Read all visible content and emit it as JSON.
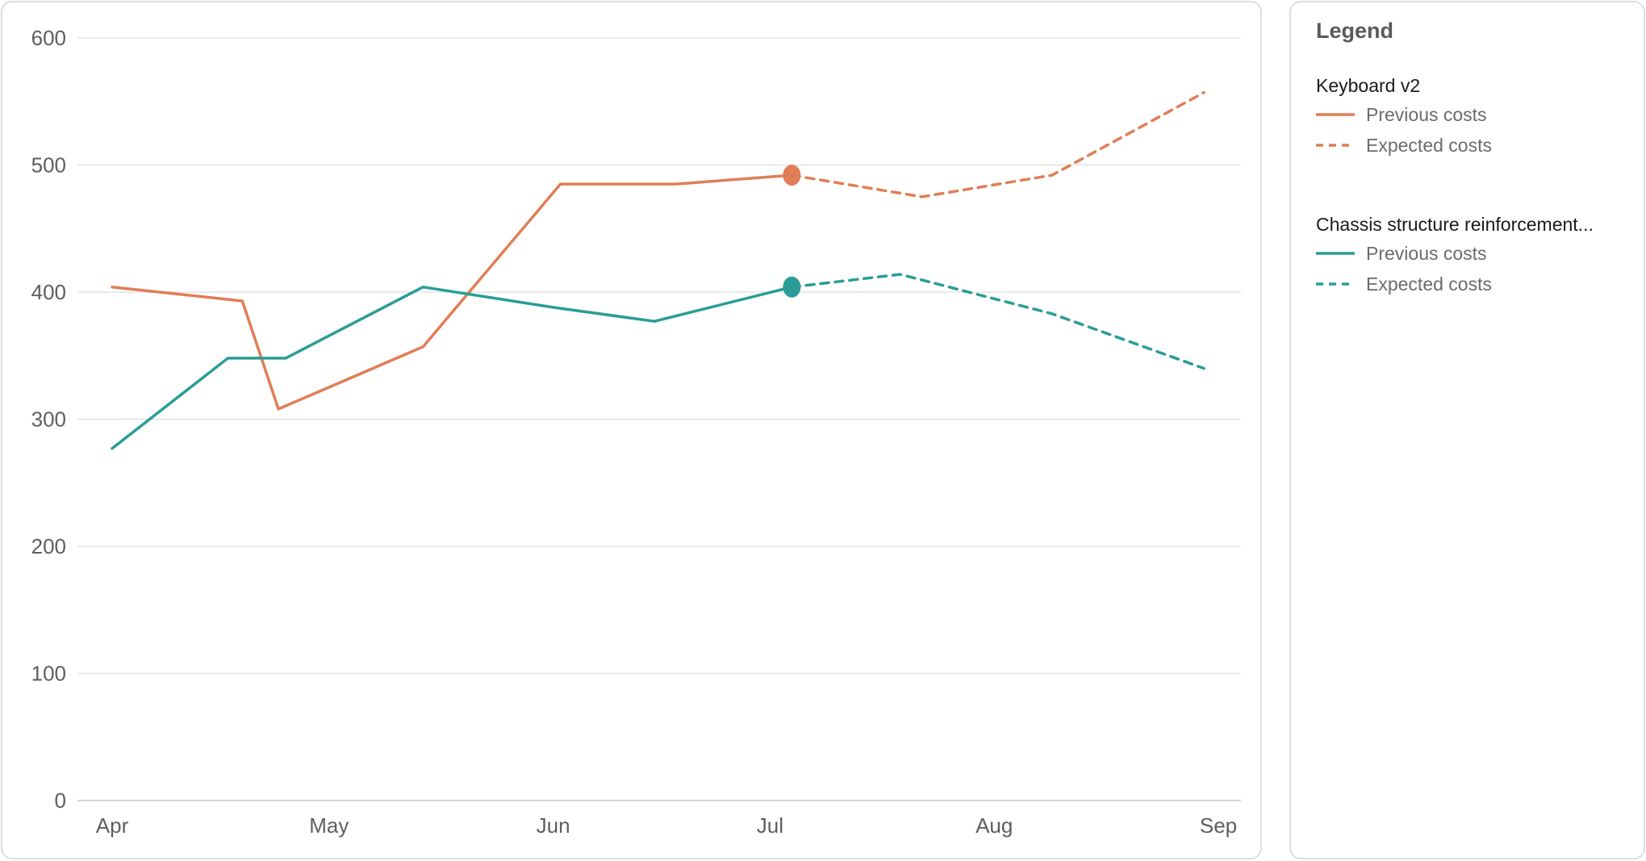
{
  "chart_data": {
    "type": "line",
    "y_axis": {
      "ylim": [
        0,
        600
      ],
      "ticks": [
        0,
        100,
        200,
        300,
        400,
        500,
        600
      ]
    },
    "x_axis": {
      "type": "date",
      "range": [
        "2024-04-01",
        "2024-09-01"
      ],
      "tick_labels": [
        {
          "date": "2024-04-01",
          "label": "Apr"
        },
        {
          "date": "2024-05-01",
          "label": "May"
        },
        {
          "date": "2024-06-01",
          "label": "Jun"
        },
        {
          "date": "2024-07-01",
          "label": "Jul"
        },
        {
          "date": "2024-08-01",
          "label": "Aug"
        },
        {
          "date": "2024-09-01",
          "label": "Sep"
        }
      ]
    },
    "grid": true,
    "legend_position": "right",
    "groups": [
      {
        "name": "Keyboard v2",
        "color": "#e07e57",
        "current_point": {
          "x": "2024-07-04",
          "y": 492
        },
        "series": [
          {
            "name": "Previous costs",
            "style": "solid",
            "points": [
              {
                "x": "2024-04-01",
                "y": 404
              },
              {
                "x": "2024-04-19",
                "y": 393
              },
              {
                "x": "2024-04-24",
                "y": 308
              },
              {
                "x": "2024-05-14",
                "y": 357
              },
              {
                "x": "2024-06-02",
                "y": 485
              },
              {
                "x": "2024-06-18",
                "y": 485
              },
              {
                "x": "2024-07-04",
                "y": 492
              }
            ]
          },
          {
            "name": "Expected costs",
            "style": "dashed",
            "points": [
              {
                "x": "2024-07-04",
                "y": 492
              },
              {
                "x": "2024-07-22",
                "y": 475
              },
              {
                "x": "2024-08-09",
                "y": 492
              },
              {
                "x": "2024-08-30",
                "y": 557
              }
            ]
          }
        ]
      },
      {
        "name": "Chassis structure reinforcement...",
        "color": "#2a9d96",
        "current_point": {
          "x": "2024-07-04",
          "y": 404
        },
        "series": [
          {
            "name": "Previous costs",
            "style": "solid",
            "points": [
              {
                "x": "2024-04-01",
                "y": 277
              },
              {
                "x": "2024-04-17",
                "y": 348
              },
              {
                "x": "2024-04-25",
                "y": 348
              },
              {
                "x": "2024-05-14",
                "y": 404
              },
              {
                "x": "2024-06-01",
                "y": 388
              },
              {
                "x": "2024-06-15",
                "y": 377
              },
              {
                "x": "2024-07-04",
                "y": 404
              }
            ]
          },
          {
            "name": "Expected costs",
            "style": "dashed",
            "points": [
              {
                "x": "2024-07-04",
                "y": 404
              },
              {
                "x": "2024-07-19",
                "y": 414
              },
              {
                "x": "2024-08-09",
                "y": 383
              },
              {
                "x": "2024-08-30",
                "y": 340
              }
            ]
          }
        ]
      }
    ]
  },
  "legend": {
    "title": "Legend",
    "groups": [
      {
        "name": "Keyboard v2",
        "color": "#e07e57",
        "entries": [
          {
            "label": "Previous costs",
            "style": "solid"
          },
          {
            "label": "Expected costs",
            "style": "dashed"
          }
        ]
      },
      {
        "name": "Chassis structure reinforcement...",
        "color": "#2a9d96",
        "entries": [
          {
            "label": "Previous costs",
            "style": "solid"
          },
          {
            "label": "Expected costs",
            "style": "dashed"
          }
        ]
      }
    ]
  }
}
